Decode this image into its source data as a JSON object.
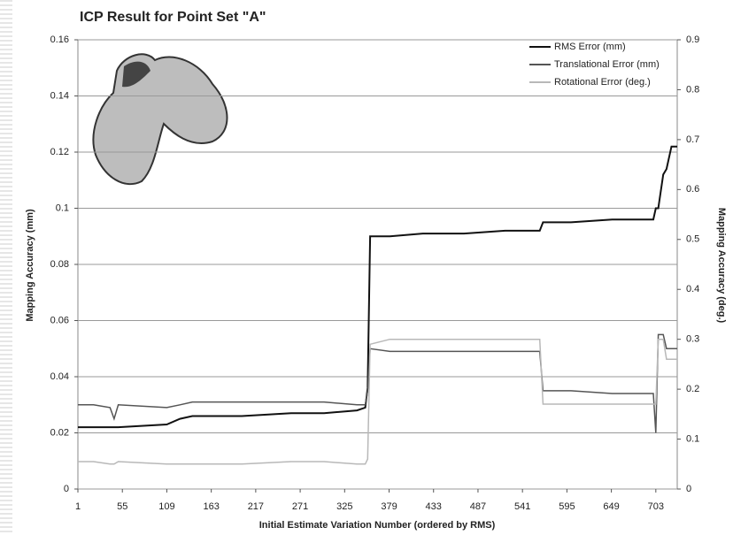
{
  "chart_data": {
    "type": "line",
    "title": "ICP Result for Point Set \"A\"",
    "xlabel": "Initial Estimate Variation Number (ordered by RMS)",
    "ylabel": "Mapping Accuracy (mm)",
    "y2label": "Mapping Accuracy (deg.)",
    "x": [
      1,
      20,
      40,
      45,
      50,
      109,
      125,
      140,
      200,
      260,
      300,
      340,
      350,
      353,
      356,
      380,
      420,
      470,
      520,
      562,
      566,
      600,
      650,
      700,
      703,
      706,
      712,
      716,
      722,
      729
    ],
    "series": [
      {
        "name": "RMS Error (mm)",
        "color": "#111111",
        "values": [
          0.022,
          0.022,
          0.022,
          0.022,
          0.022,
          0.023,
          0.025,
          0.026,
          0.026,
          0.027,
          0.027,
          0.028,
          0.029,
          0.036,
          0.09,
          0.09,
          0.091,
          0.091,
          0.092,
          0.092,
          0.095,
          0.095,
          0.096,
          0.096,
          0.1,
          0.1,
          0.112,
          0.114,
          0.122,
          0.122
        ]
      },
      {
        "name": "Translational Error (mm)",
        "color": "#555555",
        "values": [
          0.03,
          0.03,
          0.029,
          0.025,
          0.03,
          0.029,
          0.03,
          0.031,
          0.031,
          0.031,
          0.031,
          0.03,
          0.03,
          0.035,
          0.05,
          0.049,
          0.049,
          0.049,
          0.049,
          0.049,
          0.035,
          0.035,
          0.034,
          0.034,
          0.02,
          0.055,
          0.055,
          0.05,
          0.05,
          0.05
        ]
      },
      {
        "name": "Rotational Error (deg.)",
        "color": "#b8b8b8",
        "axis": "y2",
        "values": [
          0.055,
          0.055,
          0.05,
          0.05,
          0.055,
          0.05,
          0.05,
          0.05,
          0.05,
          0.055,
          0.055,
          0.05,
          0.05,
          0.06,
          0.29,
          0.3,
          0.3,
          0.3,
          0.3,
          0.3,
          0.17,
          0.17,
          0.17,
          0.17,
          0.17,
          0.3,
          0.3,
          0.26,
          0.26,
          0.26
        ]
      }
    ],
    "xlim": [
      1,
      729
    ],
    "xticks": [
      1,
      55,
      109,
      163,
      217,
      271,
      325,
      379,
      433,
      487,
      541,
      595,
      649,
      703
    ],
    "ylim": [
      0,
      0.16
    ],
    "yticks": [
      0,
      0.02,
      0.04,
      0.06,
      0.08,
      0.1,
      0.12,
      0.14,
      0.16
    ],
    "y2lim": [
      0,
      0.9
    ],
    "y2ticks": [
      0,
      0.1,
      0.2,
      0.3,
      0.4,
      0.5,
      0.6,
      0.7,
      0.8,
      0.9
    ],
    "grid": true,
    "legend": "top-right"
  }
}
